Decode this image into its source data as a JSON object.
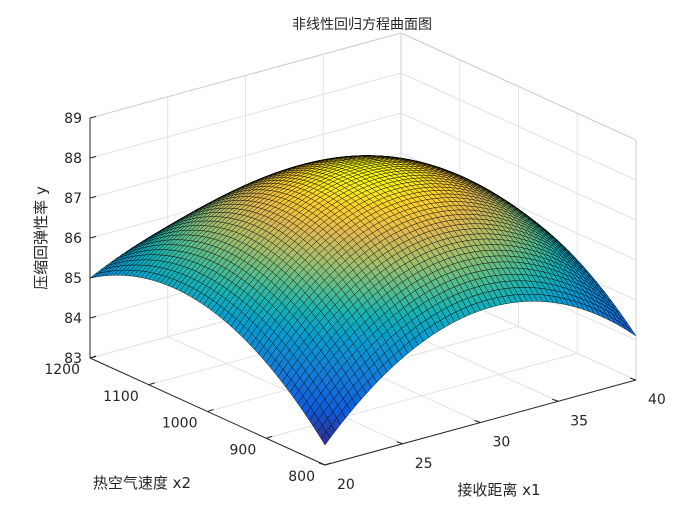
{
  "chart_data": {
    "type": "surface",
    "title": "非线性回归方程曲面图",
    "xlabel": "接收距离 x1",
    "ylabel": "热空气速度 x2",
    "zlabel": "压缩回弹性率 y",
    "xlim": [
      20,
      40
    ],
    "ylim": [
      800,
      1200
    ],
    "zlim": [
      83,
      89
    ],
    "xticks": [
      "20",
      "25",
      "30",
      "35",
      "40"
    ],
    "yticks": [
      "800",
      "900",
      "1000",
      "1100",
      "1200"
    ],
    "zticks": [
      "83",
      "84",
      "85",
      "86",
      "87",
      "88",
      "89"
    ],
    "grid": true,
    "colormap": "parula",
    "surface": {
      "x_range": [
        20,
        40
      ],
      "y_range": [
        800,
        1200
      ],
      "corner_values": {
        "x20_y800": 83.5,
        "x20_y1200": 85.0,
        "x40_y800": 84.1,
        "x40_y1200": 85.0
      },
      "peak": {
        "x": 30,
        "y": 1000,
        "z": 87.9
      },
      "mid_edges": {
        "x20_y1000": 85.6,
        "x40_y1000": 85.9,
        "x30_y800": 85.8,
        "x30_y1200": 86.0
      },
      "mesh_resolution": 60
    }
  }
}
